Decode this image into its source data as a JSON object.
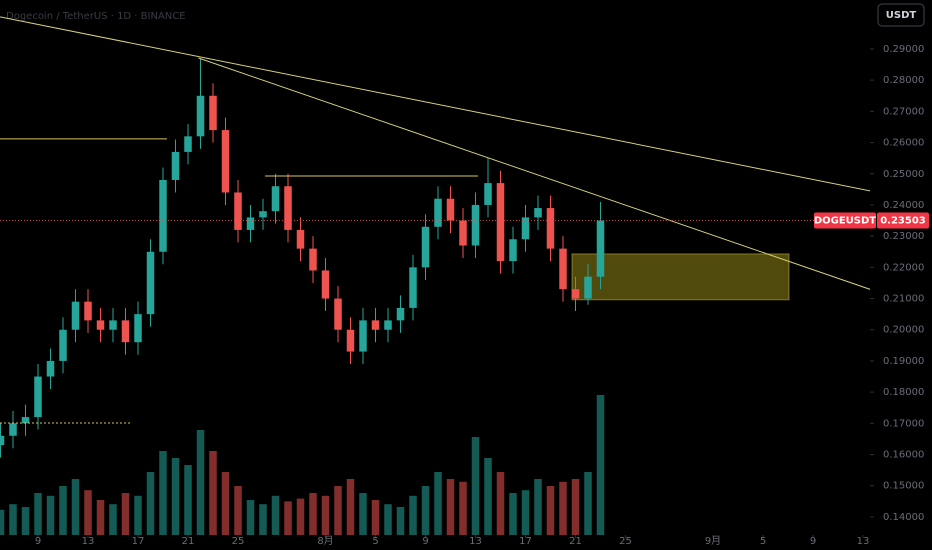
{
  "chart_data": {
    "type": "candlestick",
    "header": "Dogecoin / TetherUS · 1D · BINANCE",
    "currency_button": "USDT",
    "symbol": "DOGEUSDT",
    "last_price": 0.23503,
    "up_color": "#26a69a",
    "down_color": "#ef5350",
    "x": [
      -3,
      -2,
      -1,
      0,
      1,
      2,
      3,
      4,
      5,
      6,
      7,
      8,
      9,
      10,
      11,
      12,
      13,
      14,
      15,
      16,
      17,
      18,
      19,
      20,
      21,
      22,
      23,
      24,
      25,
      26,
      27,
      28,
      29,
      30,
      31,
      32,
      33,
      34,
      35,
      36,
      37,
      38,
      39,
      40,
      41,
      42,
      43,
      44,
      45
    ],
    "open": [
      0.163,
      0.166,
      0.17,
      0.172,
      0.185,
      0.19,
      0.2,
      0.209,
      0.203,
      0.2,
      0.203,
      0.196,
      0.205,
      0.225,
      0.248,
      0.257,
      0.262,
      0.275,
      0.264,
      0.244,
      0.232,
      0.236,
      0.238,
      0.246,
      0.232,
      0.226,
      0.219,
      0.21,
      0.2,
      0.193,
      0.203,
      0.2,
      0.203,
      0.207,
      0.22,
      0.233,
      0.242,
      0.235,
      0.227,
      0.24,
      0.247,
      0.222,
      0.229,
      0.236,
      0.239,
      0.226,
      0.213,
      0.21,
      0.217
    ],
    "high": [
      0.17,
      0.174,
      0.176,
      0.189,
      0.194,
      0.204,
      0.213,
      0.213,
      0.207,
      0.207,
      0.207,
      0.209,
      0.229,
      0.252,
      0.261,
      0.266,
      0.287,
      0.279,
      0.268,
      0.248,
      0.24,
      0.242,
      0.25,
      0.25,
      0.236,
      0.23,
      0.223,
      0.214,
      0.204,
      0.207,
      0.207,
      0.207,
      0.211,
      0.224,
      0.237,
      0.246,
      0.246,
      0.239,
      0.244,
      0.255,
      0.251,
      0.233,
      0.24,
      0.243,
      0.243,
      0.23,
      0.217,
      0.221,
      0.241
    ],
    "low": [
      0.159,
      0.162,
      0.166,
      0.168,
      0.181,
      0.186,
      0.196,
      0.199,
      0.196,
      0.196,
      0.192,
      0.192,
      0.201,
      0.221,
      0.244,
      0.253,
      0.258,
      0.26,
      0.24,
      0.228,
      0.228,
      0.232,
      0.234,
      0.228,
      0.222,
      0.215,
      0.206,
      0.196,
      0.189,
      0.189,
      0.196,
      0.196,
      0.199,
      0.203,
      0.216,
      0.229,
      0.231,
      0.223,
      0.223,
      0.236,
      0.218,
      0.218,
      0.225,
      0.232,
      0.222,
      0.209,
      0.206,
      0.208,
      0.213
    ],
    "close": [
      0.166,
      0.17,
      0.172,
      0.185,
      0.19,
      0.2,
      0.209,
      0.203,
      0.2,
      0.203,
      0.196,
      0.205,
      0.225,
      0.248,
      0.257,
      0.262,
      0.275,
      0.264,
      0.244,
      0.232,
      0.236,
      0.238,
      0.246,
      0.232,
      0.226,
      0.219,
      0.21,
      0.2,
      0.193,
      0.203,
      0.2,
      0.203,
      0.207,
      0.22,
      0.233,
      0.242,
      0.235,
      0.227,
      0.24,
      0.247,
      0.222,
      0.229,
      0.236,
      0.239,
      0.226,
      0.213,
      0.21,
      0.217,
      0.23503
    ],
    "volume": [
      18,
      22,
      20,
      30,
      28,
      35,
      40,
      32,
      25,
      22,
      30,
      28,
      45,
      60,
      55,
      50,
      75,
      60,
      45,
      35,
      25,
      22,
      28,
      24,
      26,
      30,
      28,
      35,
      40,
      30,
      25,
      22,
      20,
      28,
      35,
      45,
      40,
      38,
      70,
      55,
      45,
      30,
      32,
      40,
      35,
      38,
      40,
      45,
      100
    ],
    "xlim": [
      -3.04,
      66.56
    ],
    "ylim": [
      0.1342,
      0.3057
    ],
    "xticks": [
      {
        "value": 0,
        "label": "9"
      },
      {
        "value": 4,
        "label": "13"
      },
      {
        "value": 8,
        "label": "17"
      },
      {
        "value": 12,
        "label": "21"
      },
      {
        "value": 16,
        "label": "25"
      },
      {
        "value": 23,
        "label": "8月"
      },
      {
        "value": 27,
        "label": "5"
      },
      {
        "value": 31,
        "label": "9"
      },
      {
        "value": 35,
        "label": "13"
      },
      {
        "value": 39,
        "label": "17"
      },
      {
        "value": 43,
        "label": "21"
      },
      {
        "value": 47,
        "label": "25"
      },
      {
        "value": 54,
        "label": "9月"
      },
      {
        "value": 58,
        "label": "5"
      },
      {
        "value": 62,
        "label": "9"
      },
      {
        "value": 66,
        "label": "13"
      }
    ],
    "yticks": [
      {
        "value": 0.29,
        "label": "0.29000"
      },
      {
        "value": 0.28,
        "label": "0.28000"
      },
      {
        "value": 0.27,
        "label": "0.27000"
      },
      {
        "value": 0.26,
        "label": "0.26000"
      },
      {
        "value": 0.25,
        "label": "0.25000"
      },
      {
        "value": 0.24,
        "label": "0.24000"
      },
      {
        "value": 0.23,
        "label": "0.23000"
      },
      {
        "value": 0.22,
        "label": "0.22000"
      },
      {
        "value": 0.21,
        "label": "0.21000"
      },
      {
        "value": 0.2,
        "label": "0.20000"
      },
      {
        "value": 0.19,
        "label": "0.19000"
      },
      {
        "value": 0.18,
        "label": "0.18000"
      },
      {
        "value": 0.17,
        "label": "0.17000"
      },
      {
        "value": 0.16,
        "label": "0.16000"
      },
      {
        "value": 0.15,
        "label": "0.15000"
      },
      {
        "value": 0.14,
        "label": "0.14000"
      }
    ],
    "drawings": {
      "lines": [
        {
          "x": [
            -3.04,
            66.96
          ],
          "y": [
            0.3003,
            0.2442
          ],
          "color": "#d8d27a",
          "dash": false
        },
        {
          "x": [
            12.84,
            66.96
          ],
          "y": [
            0.2871,
            0.2124
          ],
          "color": "#d8d27a",
          "dash": false
        },
        {
          "x": [
            -3.04,
            10.32
          ],
          "y": [
            0.2612,
            0.2612
          ],
          "color": "#d8c35a",
          "dash": false
        },
        {
          "x": [
            18.16,
            35.2
          ],
          "y": [
            0.2493,
            0.2493
          ],
          "color": "#d8c35a",
          "dash": false
        },
        {
          "x": [
            -3.04,
            7.36
          ],
          "y": [
            0.1701,
            0.1701
          ],
          "color": "#d8c35a",
          "dash": true
        }
      ],
      "rect": {
        "x": [
          42.72,
          60.08
        ],
        "y": [
          0.2243,
          0.2096
        ],
        "color": "#6b6410"
      }
    }
  }
}
